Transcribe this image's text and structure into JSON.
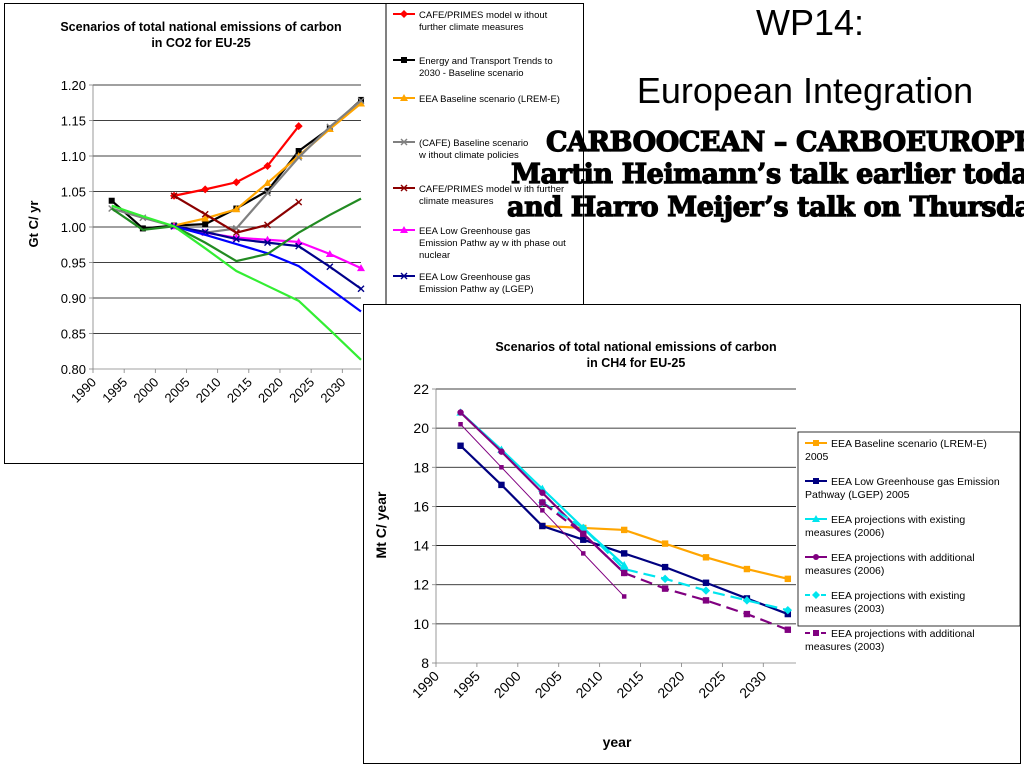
{
  "slide": {
    "title_line1": "WP14:",
    "title_line2": "European Integration",
    "overlay_line1": "CARBOOCEAN – CARBOEUROPE",
    "overlay_line2": "Martin Heimann’s talk earlier today",
    "overlay_line3": "and Harro Meijer’s talk on Thursday"
  },
  "chart_data": [
    {
      "type": "line",
      "title": "Scenarios of total national emissions of carbon in CO2 for EU-25",
      "title_lines": [
        "Scenarios of total national emissions of carbon",
        "in CO2 for EU-25"
      ],
      "xlabel": "",
      "ylabel": "Gt C/ yr",
      "xlim": [
        1990,
        2033
      ],
      "ylim": [
        0.8,
        1.2
      ],
      "x_ticks": [
        "1990",
        "1995",
        "2000",
        "2005",
        "2010",
        "2015",
        "2020",
        "2025",
        "2030"
      ],
      "y_ticks": [
        "0.80",
        "0.85",
        "0.90",
        "0.95",
        "1.00",
        "1.05",
        "1.10",
        "1.15",
        "1.20"
      ],
      "grid": "horizontal",
      "legend_position": "right",
      "series": [
        {
          "name": "CAFE/PRIMES model without further climate measures",
          "color": "#ff0000",
          "marker": "diamond",
          "x": [
            2003,
            2008,
            2013,
            2018,
            2023
          ],
          "y": [
            1.044,
            1.053,
            1.063,
            1.086,
            1.142
          ]
        },
        {
          "name": "Energy and Transport Trends to 2030 - Baseline scenario",
          "color": "#000000",
          "marker": "square",
          "x": [
            1993,
            1998,
            2003,
            2008,
            2013,
            2018,
            2023,
            2028,
            2033
          ],
          "y": [
            1.037,
            0.998,
            1.002,
            1.004,
            1.026,
            1.051,
            1.107,
            1.139,
            1.179
          ]
        },
        {
          "name": "EEA Baseline scenario (LREM-E)",
          "color": "#ffa500",
          "marker": "triangle",
          "x": [
            2003,
            2008,
            2013,
            2018,
            2023,
            2028,
            2033
          ],
          "y": [
            1.002,
            1.012,
            1.025,
            1.062,
            1.1,
            1.138,
            1.174
          ]
        },
        {
          "name": "(CAFE) Baseline scenario without climate policies",
          "color": "#808080",
          "marker": "x",
          "x": [
            1993,
            1998,
            2003,
            2008,
            2013,
            2018,
            2023,
            2028,
            2033
          ],
          "y": [
            1.026,
            1.013,
            1.001,
            0.992,
            0.998,
            1.048,
            1.098,
            1.141,
            1.178
          ]
        },
        {
          "name": "CAFE/PRIMES model with further climate measures",
          "color": "#8b0000",
          "marker": "x",
          "x": [
            2003,
            2008,
            2013,
            2018,
            2023
          ],
          "y": [
            1.044,
            1.018,
            0.992,
            1.003,
            1.035
          ]
        },
        {
          "name": "EEA Low Greenhouse gas Emission Pathway with phase out nuclear",
          "color": "#ff00ff",
          "marker": "triangle",
          "x": [
            2003,
            2008,
            2013,
            2018,
            2023,
            2028,
            2033
          ],
          "y": [
            1.001,
            0.992,
            0.985,
            0.982,
            0.979,
            0.962,
            0.942
          ]
        },
        {
          "name": "EEA Low Greenhouse gas Emission Pathway (LGEP)",
          "color": "#00008b",
          "marker": "x",
          "x": [
            2003,
            2008,
            2013,
            2018,
            2023,
            2028,
            2033
          ],
          "y": [
            1.001,
            0.993,
            0.983,
            0.978,
            0.973,
            0.944,
            0.913
          ]
        },
        {
          "name": "",
          "color": "#0000ff",
          "marker": "none",
          "x": [
            2003,
            2008,
            2013,
            2018,
            2023,
            2028,
            2033
          ],
          "y": [
            1.001,
            0.989,
            0.976,
            0.963,
            0.945,
            0.913,
            0.881
          ]
        },
        {
          "name": "",
          "color": "#228b22",
          "marker": "none",
          "x": [
            1993,
            1998,
            2003,
            2008,
            2013,
            2018,
            2023,
            2028,
            2033
          ],
          "y": [
            1.026,
            0.996,
            1.001,
            0.978,
            0.952,
            0.962,
            0.992,
            1.017,
            1.04
          ]
        },
        {
          "name": "",
          "color": "#33ee33",
          "marker": "none",
          "x": [
            1993,
            1998,
            2003,
            2008,
            2013,
            2018,
            2023,
            2028,
            2033
          ],
          "y": [
            1.03,
            1.015,
            1.001,
            0.97,
            0.938,
            0.917,
            0.896,
            0.855,
            0.813
          ]
        }
      ]
    },
    {
      "type": "line",
      "title": "Scenarios of total national emissions of carbon in CH4 for EU-25",
      "title_lines": [
        "Scenarios of total national emissions of carbon",
        "in CH4 for EU-25"
      ],
      "xlabel": "year",
      "ylabel": "Mt C/ year",
      "xlim": [
        1990,
        2034
      ],
      "ylim": [
        8,
        22
      ],
      "x_ticks": [
        "1990",
        "1995",
        "2000",
        "2005",
        "2010",
        "2015",
        "2020",
        "2025",
        "2030"
      ],
      "y_ticks": [
        "8",
        "10",
        "12",
        "14",
        "16",
        "18",
        "20",
        "22"
      ],
      "grid": "horizontal",
      "legend_position": "right",
      "series": [
        {
          "name": "EEA Baseline scenario (LREM-E) 2005",
          "color": "#ffa500",
          "marker": "square",
          "dash": false,
          "x": [
            2003,
            2008,
            2013,
            2018,
            2023,
            2028,
            2033
          ],
          "y": [
            15.0,
            14.9,
            14.8,
            14.1,
            13.4,
            12.8,
            12.3
          ]
        },
        {
          "name": "EEA Low Greenhouse gas Emission Pathway (LGEP) 2005",
          "color": "#000080",
          "marker": "square",
          "dash": false,
          "x": [
            1993,
            1998,
            2003,
            2008,
            2013,
            2018,
            2023,
            2028,
            2033
          ],
          "y": [
            19.1,
            17.1,
            15.0,
            14.3,
            13.6,
            12.9,
            12.1,
            11.3,
            10.5
          ]
        },
        {
          "name": "EEA projections with existing measures (2006)",
          "color": "#00e5ee",
          "marker": "triangle",
          "dash": false,
          "x": [
            1993,
            1998,
            2003,
            2008,
            2013
          ],
          "y": [
            20.8,
            18.9,
            16.9,
            14.9,
            13.0
          ]
        },
        {
          "name": "EEA projections with additional measures (2006)",
          "color": "#800080",
          "marker": "circle",
          "dash": false,
          "x": [
            1993,
            1998,
            2003,
            2008,
            2013
          ],
          "y": [
            20.8,
            18.8,
            16.7,
            14.6,
            12.6
          ]
        },
        {
          "name": "EEA projections with existing measures (2003)",
          "color": "#00e5ee",
          "marker": "diamond",
          "dash": true,
          "x": [
            2003,
            2008,
            2013,
            2018,
            2023,
            2028,
            2033
          ],
          "y": [
            16.2,
            14.9,
            12.8,
            12.3,
            11.7,
            11.2,
            10.7
          ]
        },
        {
          "name": "EEA projections with additional measures (2003)",
          "color": "#800080",
          "marker": "square",
          "dash": true,
          "x": [
            2003,
            2008,
            2013,
            2018,
            2023,
            2028,
            2033
          ],
          "y": [
            16.2,
            14.6,
            12.6,
            11.8,
            11.2,
            10.5,
            9.7
          ]
        },
        {
          "name": "",
          "color": "#800080",
          "marker": "small-square",
          "dash": false,
          "x": [
            1993,
            1998,
            2003,
            2008,
            2013
          ],
          "y": [
            20.2,
            18.0,
            15.8,
            13.6,
            11.4
          ]
        }
      ]
    }
  ]
}
